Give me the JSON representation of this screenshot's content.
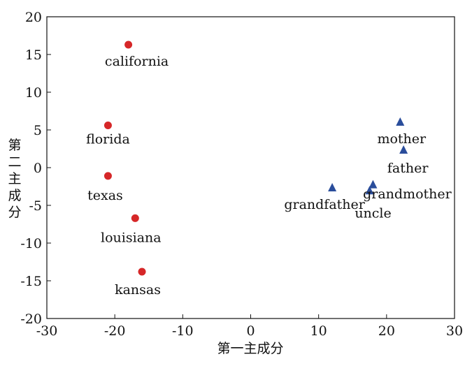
{
  "chart_data": {
    "type": "scatter",
    "title": "",
    "xlabel": "第一主成分",
    "ylabel": "第二主成分",
    "xlim": [
      -30,
      30
    ],
    "ylim": [
      -20,
      20
    ],
    "xticks": [
      -30,
      -20,
      -10,
      0,
      10,
      20,
      30
    ],
    "yticks": [
      -20,
      -15,
      -10,
      -5,
      0,
      5,
      10,
      15,
      20
    ],
    "grid": false,
    "series": [
      {
        "marker": "circle",
        "color": "#d62728",
        "points": [
          {
            "label": "california",
            "x": -18,
            "y": 16.3
          },
          {
            "label": "florida",
            "x": -21,
            "y": 5.6
          },
          {
            "label": "texas",
            "x": -21,
            "y": -1.1
          },
          {
            "label": "louisiana",
            "x": -17,
            "y": -6.7
          },
          {
            "label": "kansas",
            "x": -16,
            "y": -13.8
          }
        ]
      },
      {
        "marker": "triangle",
        "color": "#2a4d9b",
        "points": [
          {
            "label": "mother",
            "x": 22,
            "y": 6
          },
          {
            "label": "father",
            "x": 22.5,
            "y": 2.3
          },
          {
            "label": "grandfather",
            "x": 12,
            "y": -2.7
          },
          {
            "label": "uncle",
            "x": 17.5,
            "y": -3.1
          },
          {
            "label": "grandmother",
            "x": 18,
            "y": -2.3
          }
        ]
      }
    ]
  }
}
